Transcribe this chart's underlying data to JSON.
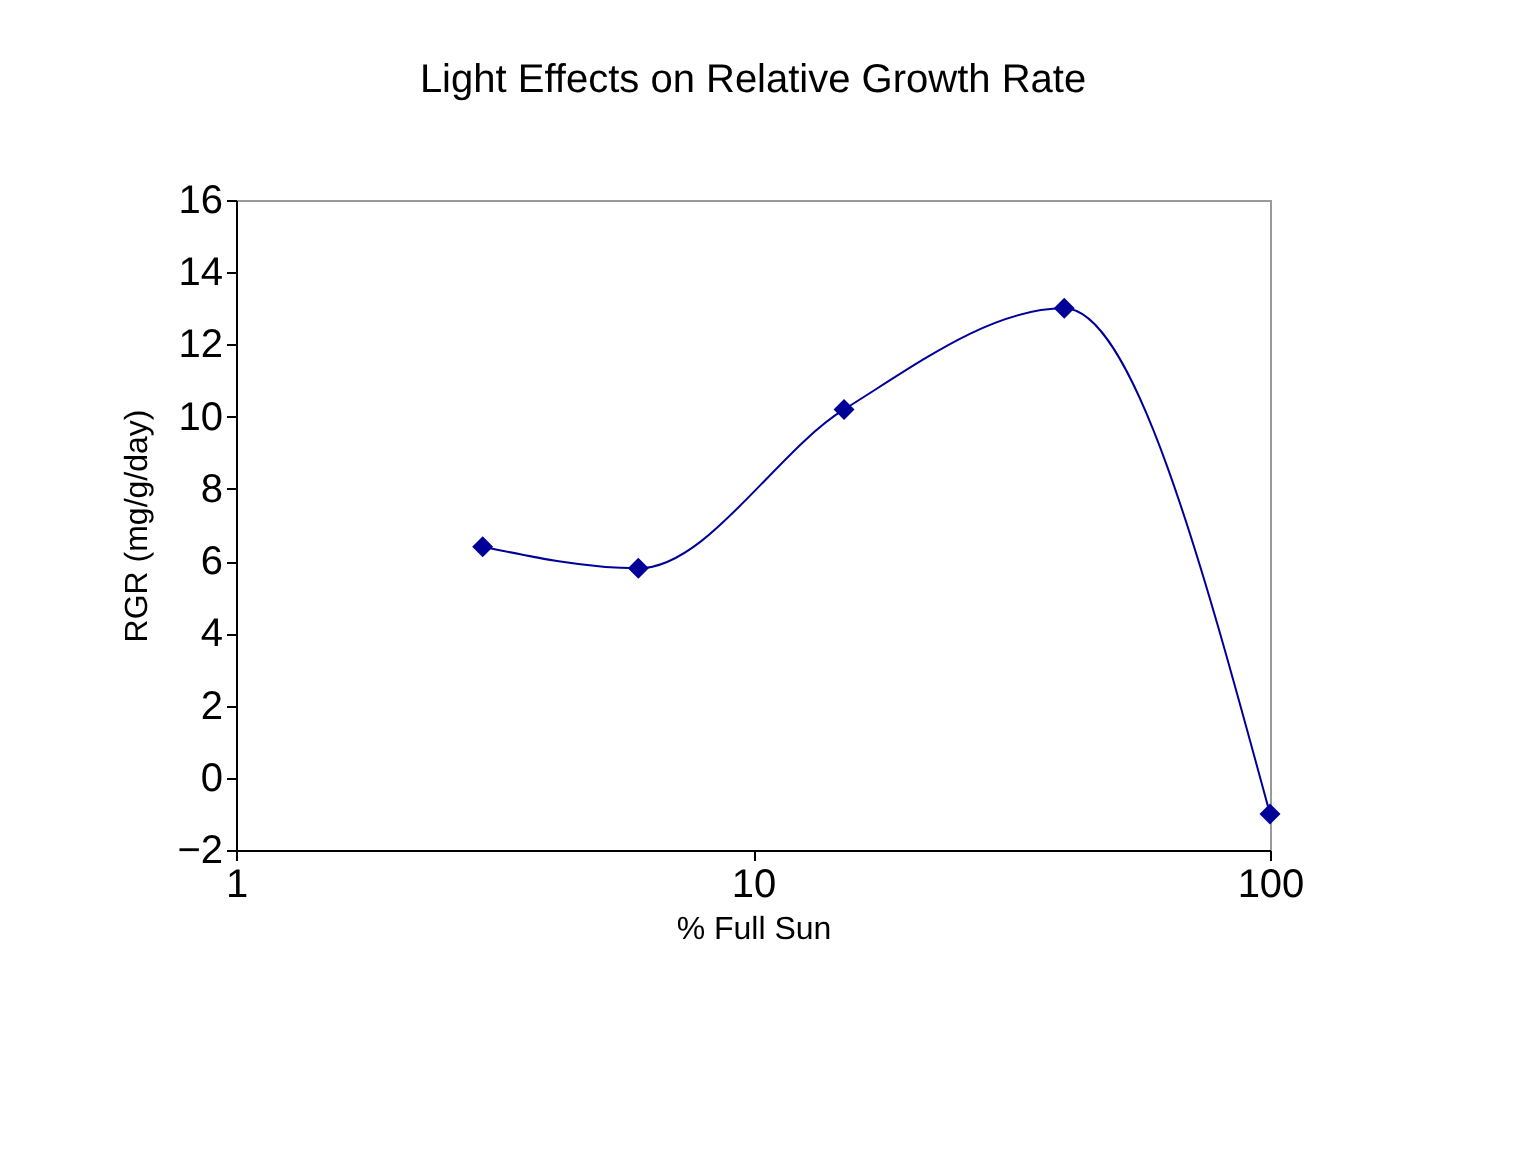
{
  "chart_data": {
    "type": "line",
    "title": "Light Effects on Relative Growth Rate",
    "xlabel": "% Full Sun",
    "ylabel": "RGR (mg/g/day)",
    "x": [
      3,
      6,
      15,
      40,
      100
    ],
    "series": [
      {
        "color": "#000099",
        "values": [
          6.4,
          5.8,
          10.2,
          13.0,
          -1.0
        ]
      }
    ],
    "log": "x",
    "xlim": [
      1,
      100
    ],
    "xticks": [
      1,
      10,
      100
    ],
    "ylim": [
      -2,
      16
    ],
    "yticks": [
      -2,
      0,
      2,
      4,
      6,
      8,
      10,
      12,
      14,
      16
    ],
    "grid": false,
    "legend": false,
    "marker": "diamond",
    "line_style": "solid"
  }
}
